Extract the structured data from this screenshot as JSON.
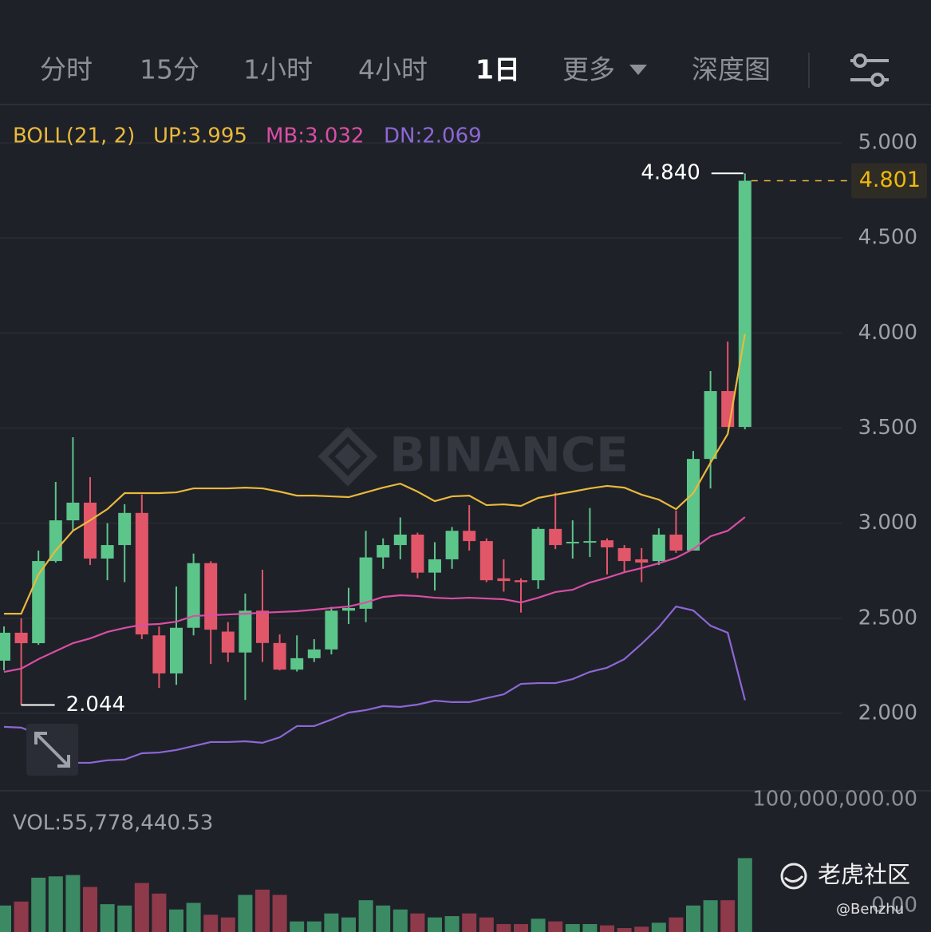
{
  "toolbar": {
    "tabs": [
      "分时",
      "15分",
      "1小时",
      "4小时",
      "1日",
      "更多",
      "深度图"
    ],
    "active": 4
  },
  "watermark": "BINANCE",
  "footer": {
    "brand": "老虎社区",
    "user": "@Benzhu"
  },
  "chart_data": [
    {
      "type": "candlestick",
      "legend_title": "BOLL(21, 2)",
      "open": [
        2.277,
        2.424,
        2.369,
        2.801,
        3.015,
        3.108,
        2.814,
        2.885,
        3.054,
        2.41,
        2.21,
        2.45,
        2.79,
        2.43,
        2.32,
        2.54,
        2.37,
        2.23,
        2.29,
        2.336,
        2.54,
        2.55,
        2.82,
        2.885,
        2.94,
        2.74,
        2.81,
        2.96,
        2.906,
        2.71,
        2.7,
        2.7,
        2.97,
        2.894,
        2.898,
        2.91,
        2.869,
        2.81,
        2.801,
        2.94,
        2.856,
        3.338,
        3.695,
        3.506
      ],
      "high": [
        2.457,
        2.5,
        2.856,
        3.217,
        3.452,
        3.242,
        3.0,
        3.1,
        3.15,
        2.457,
        2.667,
        2.84,
        2.8,
        2.48,
        2.63,
        2.755,
        2.415,
        2.41,
        2.39,
        2.56,
        2.66,
        2.96,
        2.92,
        3.03,
        2.95,
        2.9,
        2.98,
        3.095,
        2.92,
        2.81,
        2.71,
        2.98,
        3.16,
        3.015,
        3.08,
        2.92,
        2.885,
        2.869,
        2.973,
        3.066,
        3.38,
        3.8,
        3.955,
        4.84
      ],
      "low": [
        2.226,
        2.044,
        2.36,
        2.793,
        2.96,
        2.78,
        2.7,
        2.69,
        2.39,
        2.134,
        2.15,
        2.41,
        2.26,
        2.27,
        2.07,
        2.27,
        2.226,
        2.22,
        2.27,
        2.31,
        2.47,
        2.48,
        2.76,
        2.81,
        2.71,
        2.646,
        2.76,
        2.856,
        2.69,
        2.64,
        2.53,
        2.655,
        2.864,
        2.814,
        2.822,
        2.73,
        2.738,
        2.69,
        2.78,
        2.844,
        2.856,
        3.183,
        3.506,
        3.494
      ],
      "close": [
        2.424,
        2.369,
        2.801,
        3.015,
        3.108,
        2.814,
        2.885,
        3.054,
        2.415,
        2.21,
        2.45,
        2.79,
        2.44,
        2.32,
        2.54,
        2.37,
        2.23,
        2.29,
        2.336,
        2.54,
        2.554,
        2.82,
        2.885,
        2.94,
        2.74,
        2.81,
        2.96,
        2.906,
        2.7,
        2.696,
        2.69,
        2.97,
        2.885,
        2.902,
        2.906,
        2.873,
        2.801,
        2.793,
        2.94,
        2.856,
        3.338,
        3.695,
        3.506,
        4.801
      ],
      "up_color": "#5cc58a",
      "down_color": "#e2566a",
      "series": [
        {
          "label": "UP:3.995",
          "color": "#e9b93c",
          "values": [
            2.524,
            2.524,
            2.73,
            2.856,
            2.96,
            3.015,
            3.074,
            3.158,
            3.158,
            3.158,
            3.162,
            3.183,
            3.183,
            3.183,
            3.187,
            3.183,
            3.166,
            3.145,
            3.145,
            3.141,
            3.137,
            3.162,
            3.187,
            3.208,
            3.166,
            3.116,
            3.141,
            3.145,
            3.095,
            3.099,
            3.091,
            3.133,
            3.15,
            3.166,
            3.183,
            3.196,
            3.187,
            3.15,
            3.124,
            3.074,
            3.158,
            3.318,
            3.469,
            3.995
          ]
        },
        {
          "label": "MB:3.032",
          "color": "#d94ea5",
          "values": [
            2.218,
            2.235,
            2.285,
            2.327,
            2.369,
            2.394,
            2.428,
            2.449,
            2.466,
            2.47,
            2.482,
            2.512,
            2.516,
            2.52,
            2.524,
            2.529,
            2.533,
            2.537,
            2.545,
            2.554,
            2.562,
            2.583,
            2.612,
            2.621,
            2.617,
            2.608,
            2.604,
            2.608,
            2.604,
            2.6,
            2.583,
            2.608,
            2.638,
            2.65,
            2.688,
            2.713,
            2.742,
            2.764,
            2.789,
            2.818,
            2.864,
            2.931,
            2.96,
            3.032
          ]
        },
        {
          "label": "DN:2.069",
          "color": "#8d67d6",
          "values": [
            1.929,
            1.925,
            1.89,
            1.757,
            1.74,
            1.74,
            1.753,
            1.757,
            1.79,
            1.794,
            1.807,
            1.828,
            1.849,
            1.849,
            1.853,
            1.845,
            1.874,
            1.933,
            1.933,
            1.967,
            2.004,
            2.017,
            2.038,
            2.034,
            2.046,
            2.067,
            2.059,
            2.059,
            2.08,
            2.1,
            2.155,
            2.159,
            2.159,
            2.18,
            2.218,
            2.24,
            2.285,
            2.365,
            2.453,
            2.562,
            2.541,
            2.461,
            2.424,
            2.069
          ]
        }
      ],
      "ylim": [
        1.597,
        5.206
      ],
      "yticks": [
        {
          "value": 2,
          "label": "2.000"
        },
        {
          "value": 2.5,
          "label": "2.500"
        },
        {
          "value": 3,
          "label": "3.000"
        },
        {
          "value": 3.5,
          "label": "3.500"
        },
        {
          "value": 4,
          "label": "4.000"
        },
        {
          "value": 4.5,
          "label": "4.500"
        },
        {
          "value": 5,
          "label": "5.000"
        }
      ],
      "grid": true,
      "high_marker": {
        "value": 4.84,
        "label": "4.840"
      },
      "low_marker": {
        "value": 2.044,
        "label": "2.044"
      },
      "last_price": {
        "value": 4.801,
        "label": "4.801"
      }
    },
    {
      "type": "bar",
      "title": "VOL:55,778,440.53",
      "values": [
        20000000,
        23000000,
        41000000,
        42000000,
        43000000,
        34000000,
        21000000,
        20000000,
        37000000,
        29000000,
        17000000,
        22000000,
        13000000,
        11000000,
        28000000,
        32000000,
        28000000,
        8000000,
        8000000,
        14000000,
        11000000,
        24000000,
        20000000,
        17000000,
        14000000,
        11000000,
        12000000,
        14000000,
        11000000,
        6000000,
        6000000,
        10000000,
        8000000,
        6000000,
        6000000,
        5000000,
        3000000,
        4000000,
        7000000,
        11000000,
        20000000,
        24000000,
        24000000,
        55778440.53
      ],
      "up_color": "#3c8a63",
      "down_color": "#8e3a4b",
      "ylim": [
        0,
        100000000
      ],
      "yticks": [
        {
          "value": 0,
          "label": "0.00"
        },
        {
          "value": 100000000,
          "label": "100,000,000.00"
        }
      ]
    }
  ]
}
